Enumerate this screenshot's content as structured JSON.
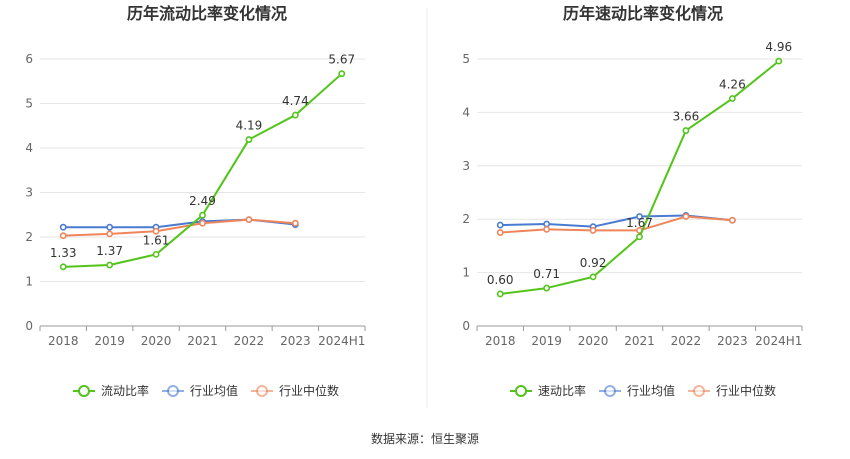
{
  "colors": {
    "primary": "#52c41a",
    "avg": "#4a7bd0",
    "median": "#f0855a",
    "grid": "#e6e6e6",
    "axis": "#999999",
    "divider": "#eeeeee"
  },
  "source_text": "数据来源：恒生聚源",
  "chart_data": [
    {
      "type": "line",
      "title": "历年流动比率变化情况",
      "categories": [
        "2018",
        "2019",
        "2020",
        "2021",
        "2022",
        "2023",
        "2024H1"
      ],
      "ylim": [
        0,
        6
      ],
      "yticks": [
        0,
        1,
        2,
        3,
        4,
        5,
        6
      ],
      "grid": true,
      "legend_position": "bottom",
      "series": [
        {
          "name": "流动比率",
          "values": [
            1.33,
            1.37,
            1.61,
            2.49,
            4.19,
            4.74,
            5.67
          ],
          "labels": [
            "1.33",
            "1.37",
            "1.61",
            "2.49",
            "4.19",
            "4.74",
            "5.67"
          ]
        },
        {
          "name": "行业均值",
          "values": [
            2.22,
            2.22,
            2.22,
            2.35,
            2.39,
            2.28,
            null
          ]
        },
        {
          "name": "行业中位数",
          "values": [
            2.03,
            2.07,
            2.13,
            2.31,
            2.39,
            2.31,
            null
          ]
        }
      ]
    },
    {
      "type": "line",
      "title": "历年速动比率变化情况",
      "categories": [
        "2018",
        "2019",
        "2020",
        "2021",
        "2022",
        "2023",
        "2024H1"
      ],
      "ylim": [
        0,
        5
      ],
      "yticks": [
        0,
        1,
        2,
        3,
        4,
        5
      ],
      "grid": true,
      "legend_position": "bottom",
      "series": [
        {
          "name": "速动比率",
          "values": [
            0.6,
            0.71,
            0.92,
            1.67,
            3.66,
            4.26,
            4.96
          ],
          "labels": [
            "0.60",
            "0.71",
            "0.92",
            "1.67",
            "3.66",
            "4.26",
            "4.96"
          ]
        },
        {
          "name": "行业均值",
          "values": [
            1.89,
            1.91,
            1.86,
            2.05,
            2.07,
            1.98,
            null
          ]
        },
        {
          "name": "行业中位数",
          "values": [
            1.75,
            1.81,
            1.79,
            1.79,
            2.05,
            1.98,
            null
          ]
        }
      ]
    }
  ]
}
